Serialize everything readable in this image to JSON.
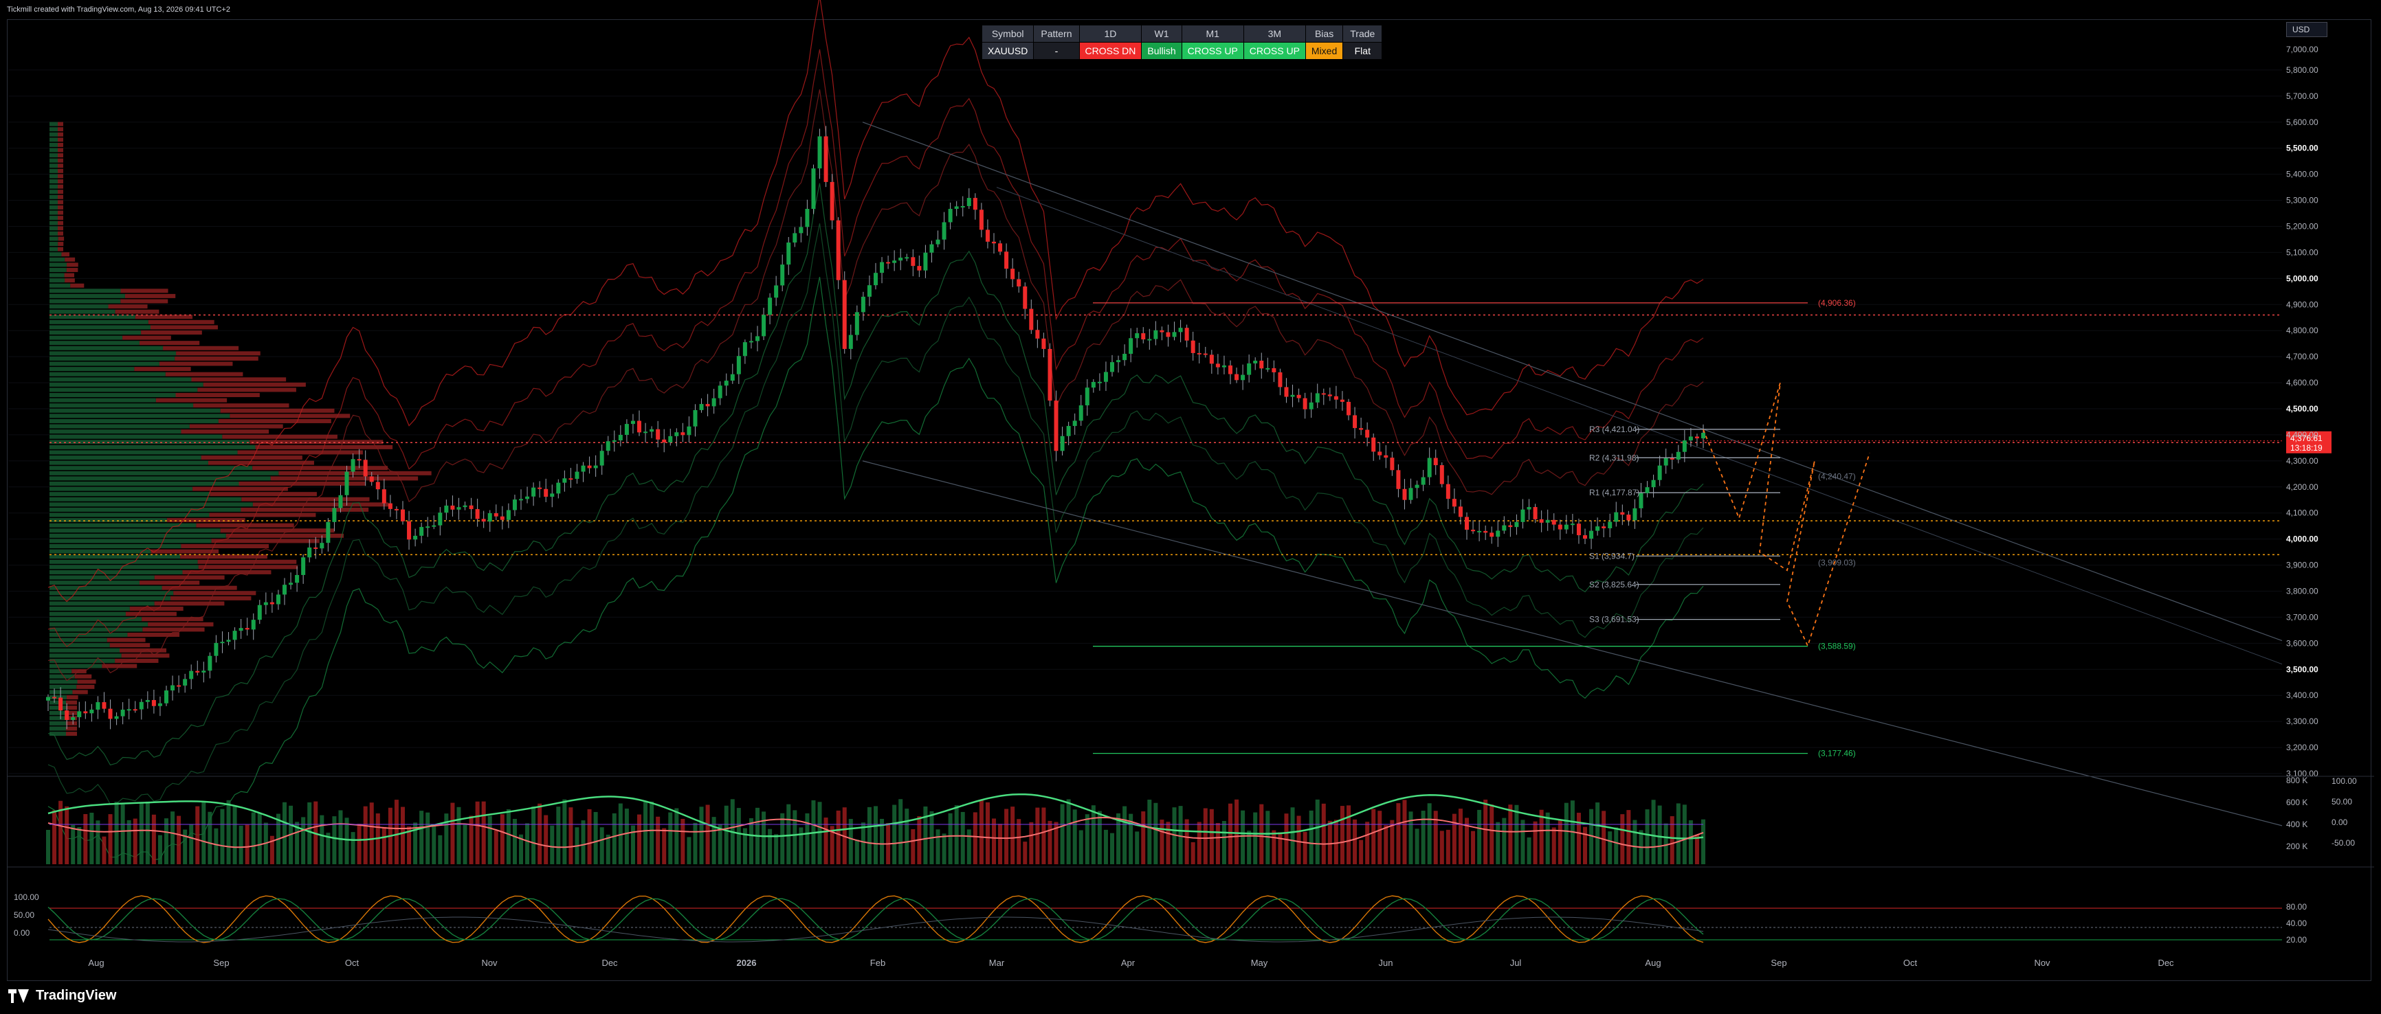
{
  "header": {
    "credit": "Tickmill created with TradingView.com, Aug 13, 2026 09:41 UTC+2"
  },
  "signal_table": {
    "headers": [
      "Symbol",
      "Pattern",
      "1D",
      "W1",
      "M1",
      "3M",
      "Bias",
      "Trade"
    ],
    "row": [
      {
        "text": "XAUUSD",
        "tone": "neutral"
      },
      {
        "text": "-",
        "tone": "dark"
      },
      {
        "text": "CROSS DN",
        "tone": "red"
      },
      {
        "text": "Bullish",
        "tone": "green"
      },
      {
        "text": "CROSS UP",
        "tone": "lime"
      },
      {
        "text": "CROSS UP",
        "tone": "lime"
      },
      {
        "text": "Mixed",
        "tone": "orange"
      },
      {
        "text": "Flat",
        "tone": "dark"
      }
    ]
  },
  "currency_selector": "USD",
  "footer": {
    "brand": "TradingView"
  },
  "colors": {
    "up": "#16a34a",
    "down": "#ef2a2a",
    "price_tag": "#ef2a2a",
    "background": "#000000",
    "grid": "#1a1d24"
  },
  "chart_data": {
    "type": "candlestick",
    "symbol": "XAUUSD",
    "price_axis": {
      "min": 3100,
      "max": 7000,
      "ticks": [
        "7,000.00",
        "5,800.00",
        "5,700.00",
        "5,600.00",
        "5,500.00",
        "5,400.00",
        "5,300.00",
        "5,200.00",
        "5,100.00",
        "5,000.00",
        "4,900.00",
        "4,800.00",
        "4,700.00",
        "4,600.00",
        "4,500.00",
        "4,400.00",
        "4,300.00",
        "4,200.00",
        "4,100.00",
        "4,000.00",
        "3,900.00",
        "3,800.00",
        "3,700.00",
        "3,600.00",
        "3,500.00",
        "3,400.00",
        "3,300.00",
        "3,200.00",
        "3,100.00"
      ],
      "bold_ticks": [
        "5,500.00",
        "5,000.00",
        "4,500.00",
        "4,000.00",
        "3,500.00"
      ]
    },
    "time_axis": {
      "labels": [
        "Aug",
        "Sep",
        "Oct",
        "Nov",
        "Dec",
        "2026",
        "Feb",
        "Mar",
        "Apr",
        "May",
        "Jun",
        "Jul",
        "Aug",
        "Sep",
        "Oct",
        "Nov",
        "Dec"
      ],
      "bold_labels": [
        "2026"
      ]
    },
    "current_price": {
      "value": "4,376.61",
      "countdown": "13:18:19"
    },
    "ohlc_weekly_path": [
      [
        0,
        3380
      ],
      [
        2,
        3320
      ],
      [
        4,
        3350
      ],
      [
        6,
        3330
      ],
      [
        8,
        3370
      ],
      [
        10,
        3420
      ],
      [
        12,
        3500
      ],
      [
        14,
        3600
      ],
      [
        16,
        3680
      ],
      [
        18,
        3760
      ],
      [
        20,
        3880
      ],
      [
        22,
        4000
      ],
      [
        24,
        4250
      ],
      [
        25,
        4300
      ],
      [
        27,
        4150
      ],
      [
        29,
        4020
      ],
      [
        31,
        4060
      ],
      [
        33,
        4150
      ],
      [
        35,
        4060
      ],
      [
        37,
        4120
      ],
      [
        39,
        4180
      ],
      [
        41,
        4200
      ],
      [
        43,
        4270
      ],
      [
        45,
        4350
      ],
      [
        47,
        4460
      ],
      [
        49,
        4370
      ],
      [
        51,
        4420
      ],
      [
        53,
        4520
      ],
      [
        55,
        4650
      ],
      [
        57,
        4800
      ],
      [
        59,
        5050
      ],
      [
        61,
        5280
      ],
      [
        62,
        5550
      ],
      [
        63,
        5200
      ],
      [
        64,
        4750
      ],
      [
        66,
        4980
      ],
      [
        68,
        5100
      ],
      [
        70,
        5030
      ],
      [
        72,
        5230
      ],
      [
        74,
        5300
      ],
      [
        76,
        5120
      ],
      [
        78,
        4960
      ],
      [
        80,
        4700
      ],
      [
        81,
        4350
      ],
      [
        83,
        4520
      ],
      [
        85,
        4650
      ],
      [
        87,
        4750
      ],
      [
        89,
        4800
      ],
      [
        91,
        4780
      ],
      [
        93,
        4700
      ],
      [
        95,
        4620
      ],
      [
        97,
        4680
      ],
      [
        99,
        4600
      ],
      [
        101,
        4500
      ],
      [
        103,
        4580
      ],
      [
        105,
        4430
      ],
      [
        107,
        4340
      ],
      [
        109,
        4150
      ],
      [
        111,
        4300
      ],
      [
        113,
        4120
      ],
      [
        115,
        4000
      ],
      [
        117,
        4050
      ],
      [
        119,
        4100
      ],
      [
        121,
        4060
      ],
      [
        123,
        4020
      ],
      [
        125,
        4050
      ],
      [
        127,
        4100
      ],
      [
        129,
        4230
      ],
      [
        131,
        4360
      ],
      [
        133,
        4400
      ]
    ],
    "pivot_levels": [
      {
        "label": "(4,906.36)",
        "value": 4906.36,
        "color": "#ef4444"
      },
      {
        "label": "R3 (4,421.04)",
        "value": 4421.04,
        "color": "#9ca3af"
      },
      {
        "label": "R2 (4,311.98)",
        "value": 4311.98,
        "color": "#9ca3af"
      },
      {
        "label": "R1 (4,177.87)",
        "value": 4177.87,
        "color": "#9ca3af"
      },
      {
        "label": "S1 (3,934.7)",
        "value": 3934.7,
        "color": "#9ca3af"
      },
      {
        "label": "S2 (3,825.64)",
        "value": 3825.64,
        "color": "#9ca3af"
      },
      {
        "label": "S3 (3,691.53)",
        "value": 3691.53,
        "color": "#9ca3af"
      },
      {
        "label": "(3,588.59)",
        "value": 3588.59,
        "color": "#22c55e"
      },
      {
        "label": "(3,177.46)",
        "value": 3177.46,
        "color": "#22c55e"
      }
    ],
    "projection_labels": [
      {
        "label": "(4,240.47)",
        "value": 4240.47
      },
      {
        "label": "(3,909.03)",
        "value": 3909.03
      }
    ],
    "horizontal_dotted": [
      {
        "value": 4860,
        "color": "#ef4444"
      },
      {
        "value": 4370,
        "color": "#ef4444"
      },
      {
        "value": 4070,
        "color": "#f59e0b"
      },
      {
        "value": 3940,
        "color": "#f59e0b"
      }
    ],
    "volume_pane": {
      "axis_labels": [
        "800 K",
        "600 K",
        "400 K",
        "200 K"
      ],
      "osc_labels": [
        "100.00",
        "50.00",
        "0.00",
        "-50.00"
      ]
    },
    "stoch_pane": {
      "left_labels": [
        "100.00",
        "50.00",
        "0.00"
      ],
      "right_labels": [
        "80.00",
        "40.00",
        "20.00"
      ]
    }
  }
}
